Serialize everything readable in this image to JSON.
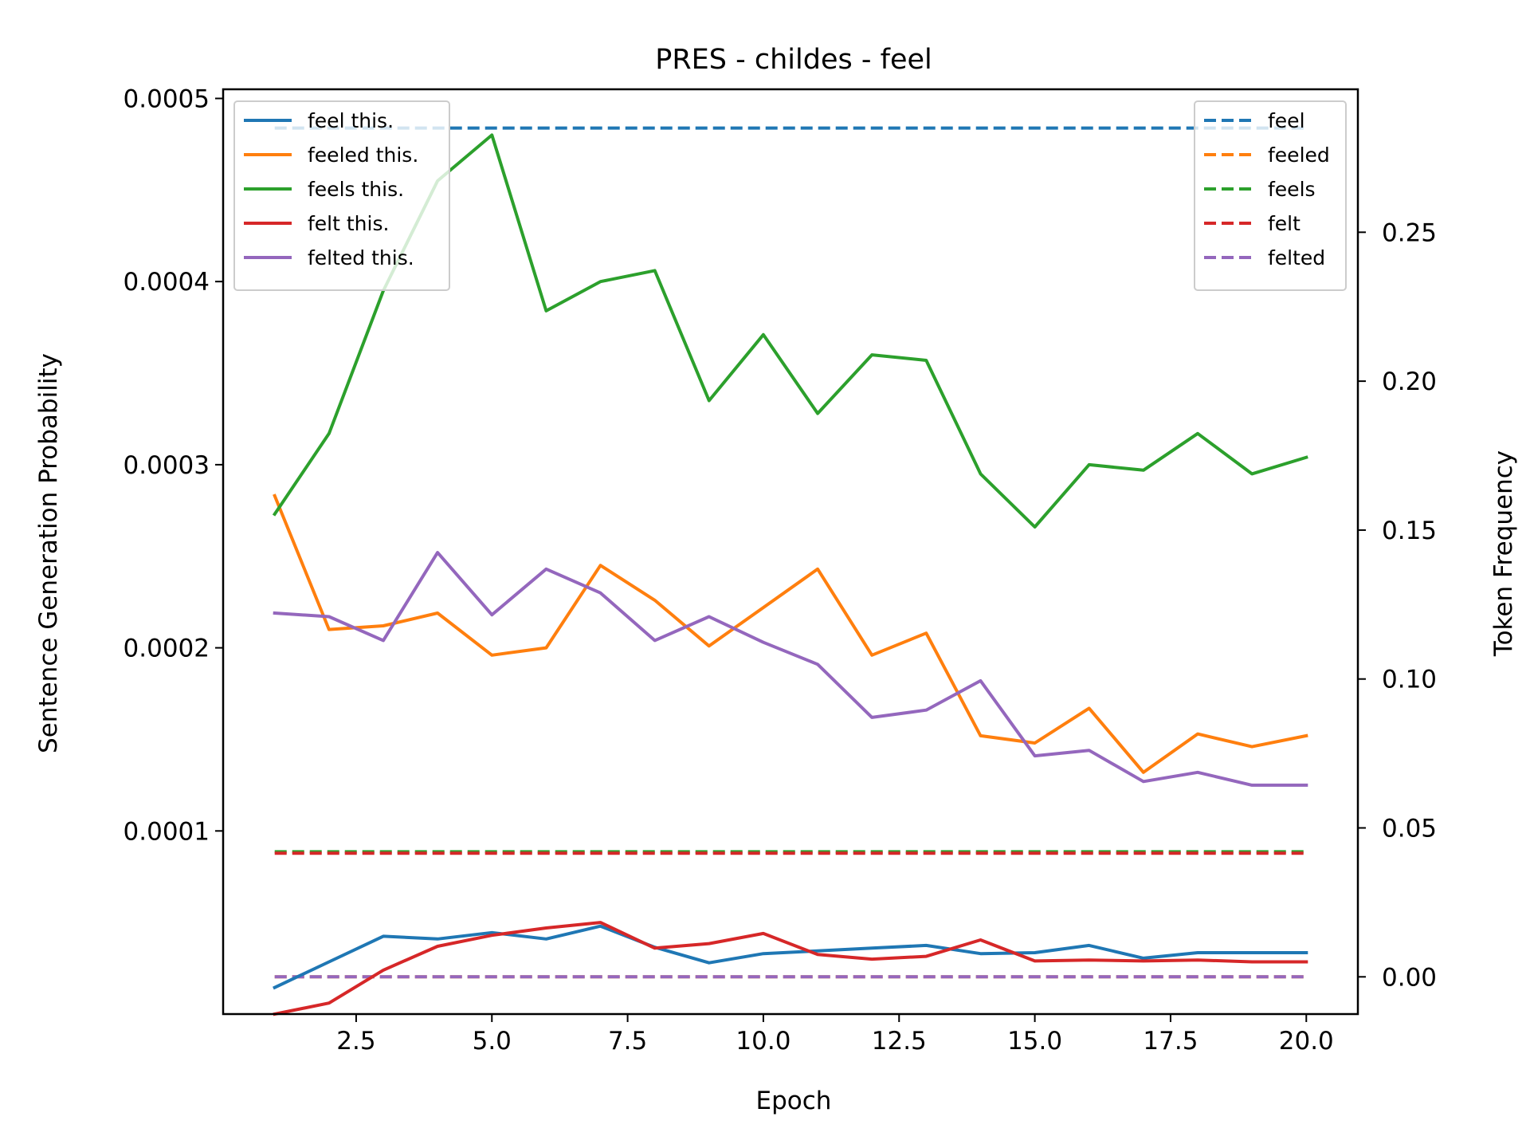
{
  "chart_data": {
    "type": "line",
    "title": "PRES - childes - feel",
    "xlabel": "Epoch",
    "ylabel_left": "Sentence Generation Probability",
    "ylabel_right": "Token Frequency",
    "x": [
      1,
      2,
      3,
      4,
      5,
      6,
      7,
      8,
      9,
      10,
      11,
      12,
      13,
      14,
      15,
      16,
      17,
      18,
      19,
      20
    ],
    "xlim": [
      0.05,
      20.95
    ],
    "xticks": [
      2.5,
      5.0,
      7.5,
      10.0,
      12.5,
      15.0,
      17.5,
      20.0
    ],
    "xtick_labels": [
      "2.5",
      "5.0",
      "7.5",
      "10.0",
      "12.5",
      "15.0",
      "17.5",
      "20.0"
    ],
    "ylim_left": [
      0.0,
      0.000505
    ],
    "yticks_left": [
      0.0001,
      0.0002,
      0.0003,
      0.0004,
      0.0005
    ],
    "ytick_labels_left": [
      "0.0001",
      "0.0002",
      "0.0003",
      "0.0004",
      "0.0005"
    ],
    "ylim_right": [
      -0.0125,
      0.298
    ],
    "yticks_right": [
      0.0,
      0.05,
      0.1,
      0.15,
      0.2,
      0.25
    ],
    "ytick_labels_right": [
      "0.00",
      "0.05",
      "0.10",
      "0.15",
      "0.20",
      "0.25"
    ],
    "legend_left_position": "upper-left",
    "legend_right_position": "upper-right",
    "series_left": [
      {
        "name": "feel this.",
        "color": "#1f77b4",
        "values": [
          1.45e-05,
          2.85e-05,
          4.25e-05,
          4.1e-05,
          4.45e-05,
          4.1e-05,
          4.8e-05,
          3.65e-05,
          2.8e-05,
          3.3e-05,
          3.45e-05,
          3.6e-05,
          3.75e-05,
          3.3e-05,
          3.35e-05,
          3.75e-05,
          3.05e-05,
          3.35e-05,
          3.35e-05,
          3.35e-05
        ]
      },
      {
        "name": "feeled this.",
        "color": "#ff7f0e",
        "values": [
          0.000283,
          0.00021,
          0.000212,
          0.000219,
          0.000196,
          0.0002,
          0.000245,
          0.000226,
          0.000201,
          0.000222,
          0.000243,
          0.000196,
          0.000208,
          0.000152,
          0.000148,
          0.000167,
          0.000132,
          0.000153,
          0.000146,
          0.000152
        ]
      },
      {
        "name": "feels this.",
        "color": "#2ca02c",
        "values": [
          0.000273,
          0.000317,
          0.000395,
          0.000455,
          0.00048,
          0.000384,
          0.0004,
          0.000406,
          0.000335,
          0.000371,
          0.000328,
          0.00036,
          0.000357,
          0.000295,
          0.000266,
          0.0003,
          0.000297,
          0.000317,
          0.000295,
          0.000304
        ]
      },
      {
        "name": "felt this.",
        "color": "#d62728",
        "values": [
          0.0,
          6e-06,
          2.4e-05,
          3.7e-05,
          4.3e-05,
          4.7e-05,
          5e-05,
          3.6e-05,
          3.85e-05,
          4.4e-05,
          3.25e-05,
          3e-05,
          3.15e-05,
          4.05e-05,
          2.9e-05,
          2.95e-05,
          2.9e-05,
          2.95e-05,
          2.85e-05,
          2.85e-05
        ]
      },
      {
        "name": "felted this.",
        "color": "#9467bd",
        "values": [
          0.000219,
          0.000217,
          0.000204,
          0.000252,
          0.000218,
          0.000243,
          0.00023,
          0.000204,
          0.000217,
          0.000203,
          0.000191,
          0.000162,
          0.000166,
          0.000182,
          0.000141,
          0.000144,
          0.000127,
          0.000132,
          0.000125,
          0.000125
        ]
      }
    ],
    "series_right": [
      {
        "name": "feel",
        "color": "#1f77b4",
        "value": 0.285
      },
      {
        "name": "feeled",
        "color": "#ff7f0e",
        "value": 0.0
      },
      {
        "name": "feels",
        "color": "#2ca02c",
        "value": 0.042
      },
      {
        "name": "felt",
        "color": "#d62728",
        "value": 0.0415
      },
      {
        "name": "felted",
        "color": "#9467bd",
        "value": 0.0
      }
    ]
  }
}
